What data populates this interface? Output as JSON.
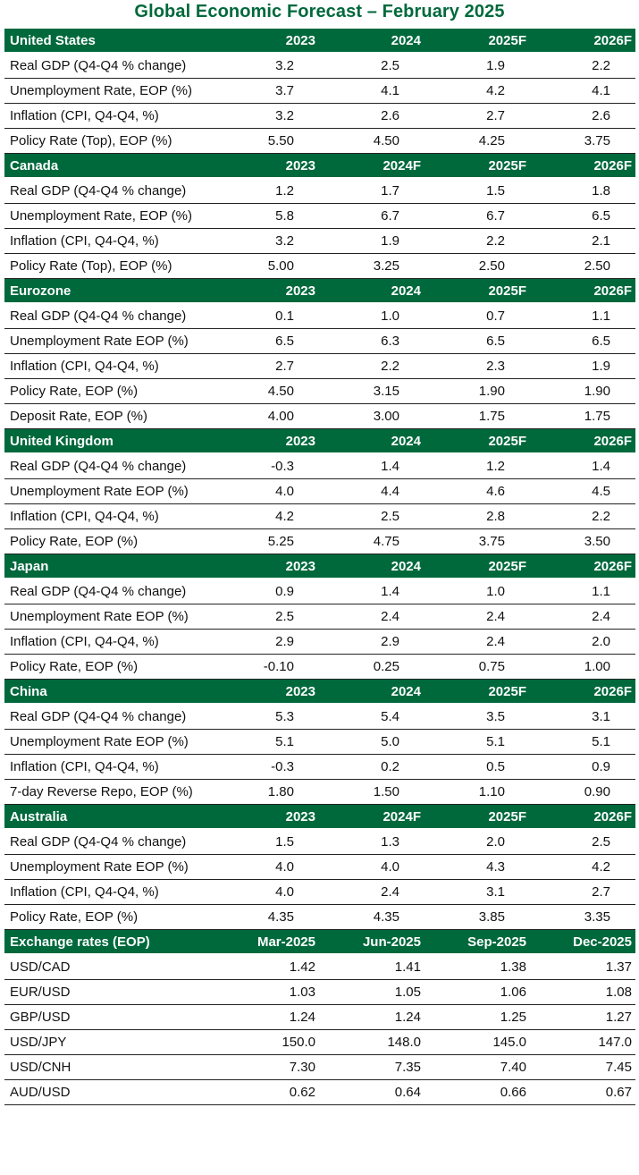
{
  "title": "Global Economic Forecast – February 2025",
  "sections": [
    {
      "header": [
        "United States",
        "2023",
        "2024",
        "2025F",
        "2026F"
      ],
      "rows": [
        [
          "Real GDP (Q4-Q4 % change)",
          "3.2",
          "2.5",
          "1.9",
          "2.2"
        ],
        [
          "Unemployment Rate, EOP (%)",
          "3.7",
          "4.1",
          "4.2",
          "4.1"
        ],
        [
          "Inflation (CPI, Q4-Q4, %)",
          "3.2",
          "2.6",
          "2.7",
          "2.6"
        ],
        [
          "Policy Rate (Top), EOP (%)",
          "5.50",
          "4.50",
          "4.25",
          "3.75"
        ]
      ]
    },
    {
      "header": [
        "Canada",
        "2023",
        "2024F",
        "2025F",
        "2026F"
      ],
      "rows": [
        [
          "Real GDP (Q4-Q4 % change)",
          "1.2",
          "1.7",
          "1.5",
          "1.8"
        ],
        [
          "Unemployment Rate, EOP (%)",
          "5.8",
          "6.7",
          "6.7",
          "6.5"
        ],
        [
          "Inflation (CPI, Q4-Q4, %)",
          "3.2",
          "1.9",
          "2.2",
          "2.1"
        ],
        [
          "Policy Rate (Top), EOP (%)",
          "5.00",
          "3.25",
          "2.50",
          "2.50"
        ]
      ]
    },
    {
      "header": [
        "Eurozone",
        "2023",
        "2024",
        "2025F",
        "2026F"
      ],
      "rows": [
        [
          "Real GDP (Q4-Q4 % change)",
          "0.1",
          "1.0",
          "0.7",
          "1.1"
        ],
        [
          "Unemployment Rate EOP (%)",
          "6.5",
          "6.3",
          "6.5",
          "6.5"
        ],
        [
          "Inflation (CPI, Q4-Q4, %)",
          "2.7",
          "2.2",
          "2.3",
          "1.9"
        ],
        [
          "Policy Rate, EOP (%)",
          "4.50",
          "3.15",
          "1.90",
          "1.90"
        ],
        [
          "Deposit Rate, EOP (%)",
          "4.00",
          "3.00",
          "1.75",
          "1.75"
        ]
      ]
    },
    {
      "header": [
        "United Kingdom",
        "2023",
        "2024",
        "2025F",
        "2026F"
      ],
      "rows": [
        [
          "Real GDP (Q4-Q4 % change)",
          "-0.3",
          "1.4",
          "1.2",
          "1.4"
        ],
        [
          "Unemployment Rate EOP (%)",
          "4.0",
          "4.4",
          "4.6",
          "4.5"
        ],
        [
          "Inflation (CPI, Q4-Q4, %)",
          "4.2",
          "2.5",
          "2.8",
          "2.2"
        ],
        [
          "Policy Rate, EOP (%)",
          "5.25",
          "4.75",
          "3.75",
          "3.50"
        ]
      ]
    },
    {
      "header": [
        "Japan",
        "2023",
        "2024",
        "2025F",
        "2026F"
      ],
      "rows": [
        [
          "Real GDP (Q4-Q4 % change)",
          "0.9",
          "1.4",
          "1.0",
          "1.1"
        ],
        [
          "Unemployment Rate EOP (%)",
          "2.5",
          "2.4",
          "2.4",
          "2.4"
        ],
        [
          "Inflation (CPI, Q4-Q4, %)",
          "2.9",
          "2.9",
          "2.4",
          "2.0"
        ],
        [
          "Policy Rate, EOP (%)",
          "-0.10",
          "0.25",
          "0.75",
          "1.00"
        ]
      ]
    },
    {
      "header": [
        "China",
        "2023",
        "2024",
        "2025F",
        "2026F"
      ],
      "rows": [
        [
          "Real GDP (Q4-Q4 % change)",
          "5.3",
          "5.4",
          "3.5",
          "3.1"
        ],
        [
          "Unemployment Rate EOP (%)",
          "5.1",
          "5.0",
          "5.1",
          "5.1"
        ],
        [
          "Inflation (CPI, Q4-Q4, %)",
          "-0.3",
          "0.2",
          "0.5",
          "0.9"
        ],
        [
          "7-day Reverse Repo, EOP (%)",
          "1.80",
          "1.50",
          "1.10",
          "0.90"
        ]
      ]
    },
    {
      "header": [
        "Australia",
        "2023",
        "2024F",
        "2025F",
        "2026F"
      ],
      "rows": [
        [
          "Real GDP (Q4-Q4 % change)",
          "1.5",
          "1.3",
          "2.0",
          "2.5"
        ],
        [
          "Unemployment Rate EOP (%)",
          "4.0",
          "4.0",
          "4.3",
          "4.2"
        ],
        [
          "Inflation (CPI, Q4-Q4, %)",
          "4.0",
          "2.4",
          "3.1",
          "2.7"
        ],
        [
          "Policy Rate, EOP (%)",
          "4.35",
          "4.35",
          "3.85",
          "3.35"
        ]
      ]
    },
    {
      "header": [
        "Exchange rates (EOP)",
        "Mar-2025",
        "Jun-2025",
        "Sep-2025",
        "Dec-2025"
      ],
      "fx": true,
      "rows": [
        [
          "USD/CAD",
          "1.42",
          "1.41",
          "1.38",
          "1.37"
        ],
        [
          "EUR/USD",
          "1.03",
          "1.05",
          "1.06",
          "1.08"
        ],
        [
          "GBP/USD",
          "1.24",
          "1.24",
          "1.25",
          "1.27"
        ],
        [
          "USD/JPY",
          "150.0",
          "148.0",
          "145.0",
          "147.0"
        ],
        [
          "USD/CNH",
          "7.30",
          "7.35",
          "7.40",
          "7.45"
        ],
        [
          "AUD/USD",
          "0.62",
          "0.64",
          "0.66",
          "0.67"
        ]
      ]
    }
  ]
}
